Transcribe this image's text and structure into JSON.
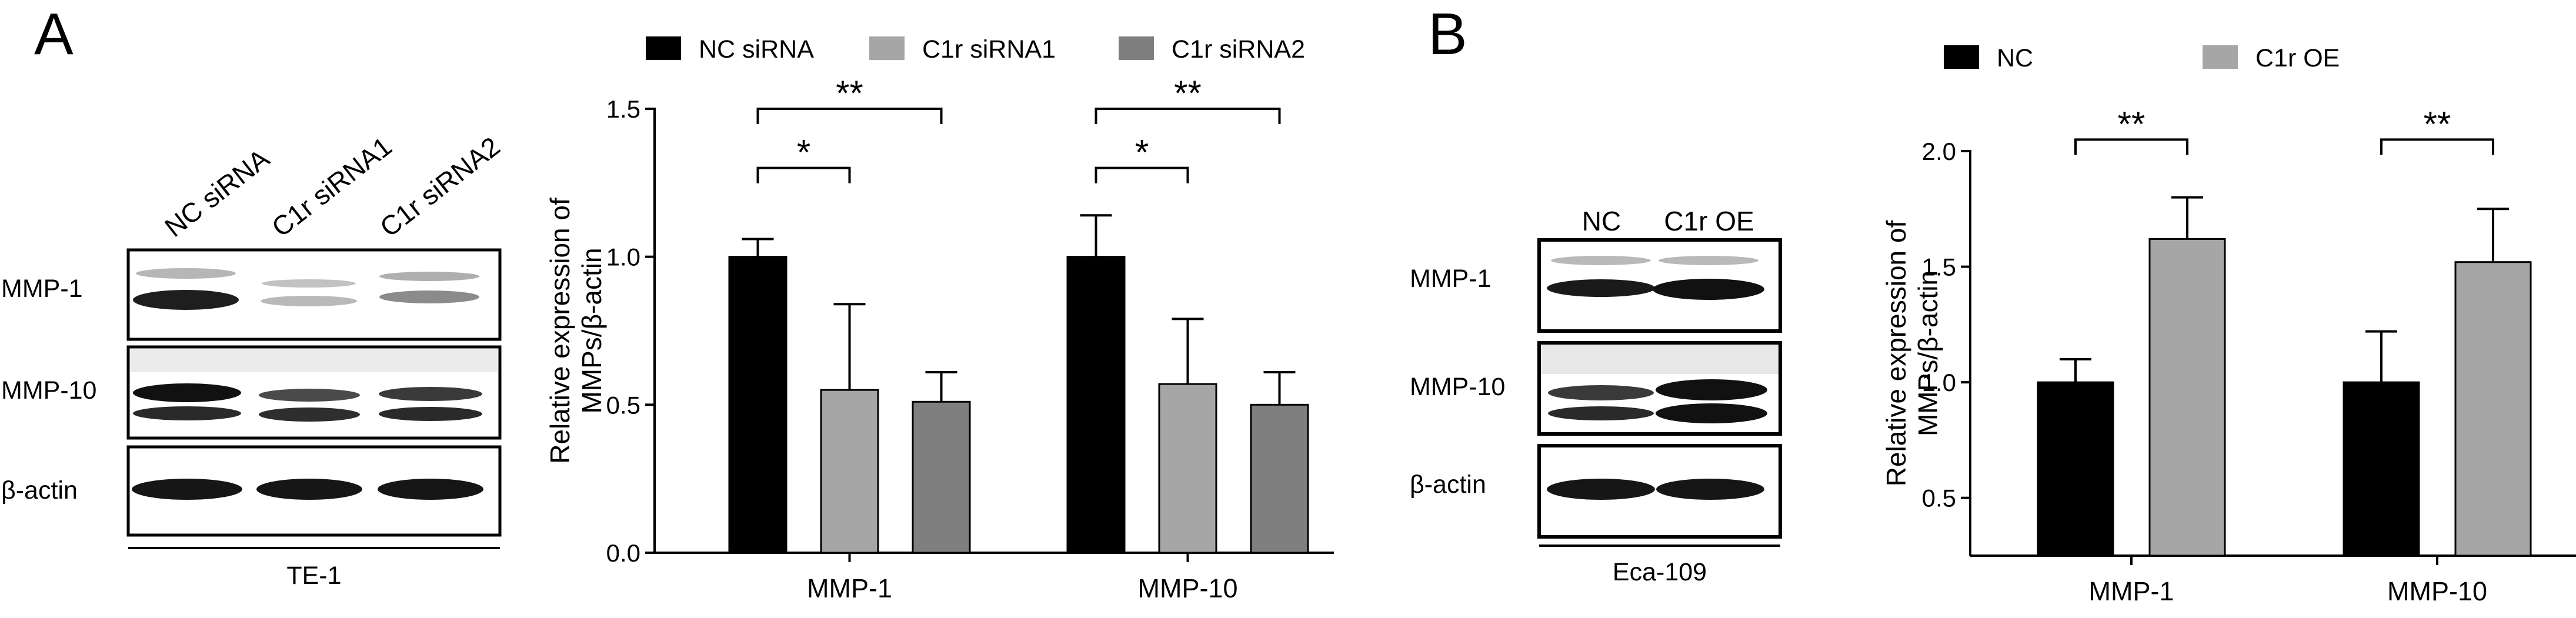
{
  "panels": {
    "a": {
      "letter": "A",
      "blot": {
        "lanes": [
          "NC siRNA",
          "C1r siRNA1",
          "C1r siRNA2"
        ],
        "rows": [
          "MMP-1",
          "MMP-10",
          "β-actin"
        ],
        "cell_line": "TE-1"
      }
    },
    "b": {
      "letter": "B",
      "blot": {
        "lanes": [
          "NC",
          "C1r OE"
        ],
        "rows": [
          "MMP-1",
          "MMP-10",
          "β-actin"
        ],
        "cell_line": "Eca-109"
      }
    }
  },
  "colors": {
    "black": "#000000",
    "light_gray": "#a6a6a6",
    "mid_gray": "#7f7f7f",
    "dark_gray": "#808080"
  },
  "chart_data": [
    {
      "type": "bar",
      "panel": "A",
      "title": "",
      "xlabel": "",
      "ylabel": "Relative expression of MMPs/β-actin",
      "ylabel_lines": [
        "Relative expression of",
        "MMPs/β-actin"
      ],
      "ylim": [
        0,
        1.5
      ],
      "yticks": [
        "0.0",
        "0.5",
        "1.0",
        "1.5"
      ],
      "categories": [
        "MMP-1",
        "MMP-10"
      ],
      "legend_position": "top",
      "grid": false,
      "series": [
        {
          "name": "NC siRNA",
          "color": "#000000",
          "values": [
            1.0,
            1.0
          ],
          "errors": [
            0.06,
            0.14
          ]
        },
        {
          "name": "C1r siRNA1",
          "color": "#a6a6a6",
          "values": [
            0.55,
            0.57
          ],
          "errors": [
            0.29,
            0.22
          ]
        },
        {
          "name": "C1r siRNA2",
          "color": "#7f7f7f",
          "values": [
            0.51,
            0.5
          ],
          "errors": [
            0.1,
            0.11
          ]
        }
      ],
      "significance": [
        {
          "category": 0,
          "from": 0,
          "to": 1,
          "label": "*",
          "y": 1.3
        },
        {
          "category": 0,
          "from": 0,
          "to": 2,
          "label": "**",
          "y": 1.5
        },
        {
          "category": 1,
          "from": 0,
          "to": 1,
          "label": "*",
          "y": 1.3
        },
        {
          "category": 1,
          "from": 0,
          "to": 2,
          "label": "**",
          "y": 1.5
        }
      ]
    },
    {
      "type": "bar",
      "panel": "B",
      "title": "",
      "xlabel": "",
      "ylabel": "Relative expression of MMPs/β-actin",
      "ylabel_lines": [
        "Relative expression of",
        "MMPs/β-actin"
      ],
      "ylim": [
        0.25,
        2.0
      ],
      "yticks": [
        "0.5",
        "1.0",
        "1.5",
        "2.0"
      ],
      "categories": [
        "MMP-1",
        "MMP-10"
      ],
      "legend_position": "top",
      "grid": false,
      "series": [
        {
          "name": "NC",
          "color": "#000000",
          "values": [
            1.0,
            1.0
          ],
          "errors": [
            0.1,
            0.22
          ]
        },
        {
          "name": "C1r OE",
          "color": "#a6a6a6",
          "values": [
            1.62,
            1.52
          ],
          "errors": [
            0.18,
            0.23
          ]
        }
      ],
      "significance": [
        {
          "category": 0,
          "from": 0,
          "to": 1,
          "label": "**",
          "y": 2.05
        },
        {
          "category": 1,
          "from": 0,
          "to": 1,
          "label": "**",
          "y": 2.05
        }
      ]
    }
  ]
}
